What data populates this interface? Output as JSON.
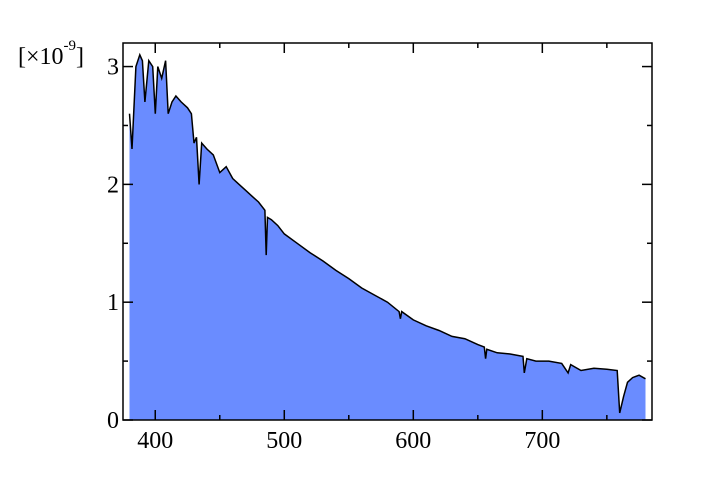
{
  "chart_data": {
    "type": "area",
    "ylabel_parts": [
      "[×10",
      "-9",
      "]"
    ],
    "x": [
      380,
      382,
      385,
      388,
      390,
      392,
      395,
      398,
      400,
      402,
      405,
      408,
      410,
      413,
      416,
      420,
      425,
      428,
      430,
      432,
      434,
      436,
      440,
      445,
      450,
      455,
      460,
      465,
      470,
      475,
      480,
      485,
      486,
      487,
      490,
      495,
      500,
      510,
      520,
      530,
      540,
      550,
      560,
      570,
      580,
      589,
      590,
      591,
      600,
      610,
      620,
      630,
      640,
      650,
      655,
      656,
      657,
      665,
      675,
      685,
      686,
      688,
      695,
      705,
      715,
      720,
      722,
      730,
      740,
      750,
      758,
      760,
      763,
      766,
      770,
      775,
      780
    ],
    "values": [
      2.6,
      2.3,
      3.0,
      3.1,
      3.05,
      2.7,
      3.05,
      3.0,
      2.6,
      3.0,
      2.9,
      3.05,
      2.6,
      2.7,
      2.75,
      2.7,
      2.65,
      2.6,
      2.35,
      2.4,
      2.0,
      2.35,
      2.3,
      2.25,
      2.1,
      2.15,
      2.05,
      2.0,
      1.95,
      1.9,
      1.85,
      1.78,
      1.4,
      1.72,
      1.7,
      1.65,
      1.58,
      1.5,
      1.42,
      1.35,
      1.27,
      1.2,
      1.12,
      1.06,
      1.0,
      0.92,
      0.86,
      0.92,
      0.85,
      0.8,
      0.76,
      0.71,
      0.69,
      0.64,
      0.62,
      0.52,
      0.6,
      0.57,
      0.56,
      0.54,
      0.4,
      0.52,
      0.5,
      0.5,
      0.48,
      0.4,
      0.47,
      0.42,
      0.44,
      0.43,
      0.42,
      0.06,
      0.2,
      0.32,
      0.36,
      0.38,
      0.35
    ],
    "color": "#6a8cff",
    "line_color": "#000000",
    "xlim": [
      375,
      785
    ],
    "xticks": [
      400,
      500,
      600,
      700
    ],
    "xminorticks": [
      450,
      550,
      650,
      750
    ],
    "ylim": [
      0,
      3.2
    ],
    "yticks": [
      0,
      1,
      2,
      3
    ],
    "yminorticks": [
      0.5,
      1.5,
      2.5
    ]
  }
}
